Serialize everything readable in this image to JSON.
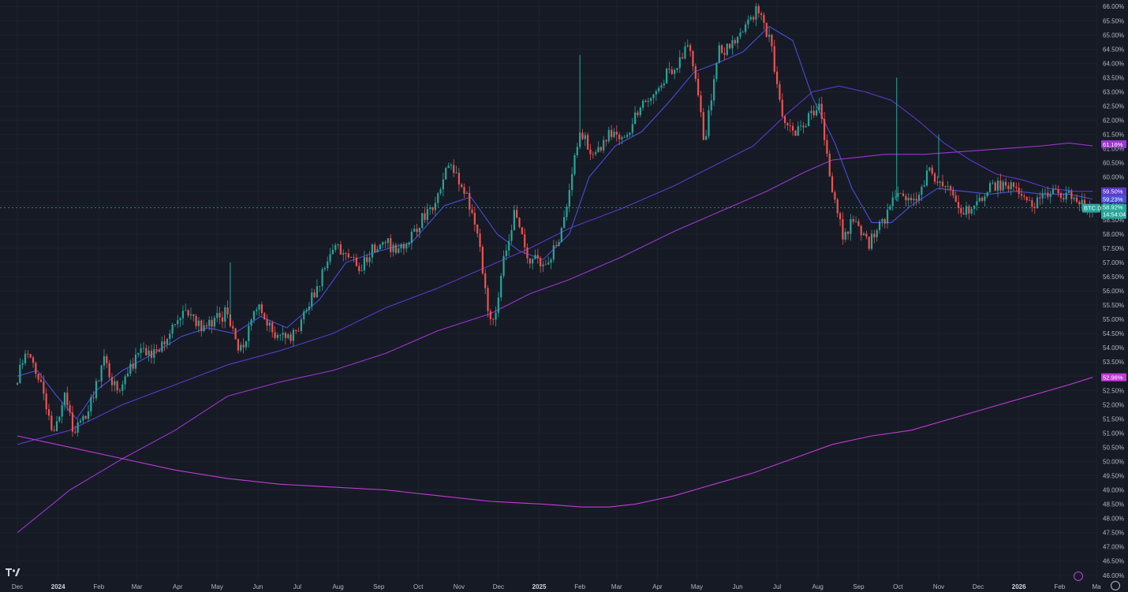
{
  "chart_data": {
    "type": "candlestick",
    "symbol": "BTC.D",
    "last_value": "58.92%",
    "countdown": "14:54:04",
    "ylim": [
      45.8,
      66.2
    ],
    "y_ticks": [
      "46.00%",
      "46.50%",
      "47.00%",
      "47.50%",
      "48.00%",
      "48.50%",
      "49.00%",
      "49.50%",
      "50.00%",
      "50.50%",
      "51.00%",
      "51.50%",
      "52.00%",
      "52.50%",
      "53.00%",
      "53.50%",
      "54.00%",
      "54.50%",
      "55.00%",
      "55.50%",
      "56.00%",
      "56.50%",
      "57.00%",
      "57.50%",
      "58.00%",
      "58.50%",
      "59.00%",
      "59.50%",
      "60.00%",
      "60.50%",
      "61.00%",
      "61.50%",
      "62.00%",
      "62.50%",
      "63.00%",
      "63.50%",
      "64.00%",
      "64.50%",
      "65.00%",
      "65.50%",
      "66.00%"
    ],
    "x_ticks": [
      {
        "label": "Dec",
        "day": 0
      },
      {
        "label": "2024",
        "day": 31,
        "year": true
      },
      {
        "label": "Feb",
        "day": 62
      },
      {
        "label": "Mar",
        "day": 91
      },
      {
        "label": "Apr",
        "day": 122
      },
      {
        "label": "May",
        "day": 152
      },
      {
        "label": "Jun",
        "day": 183
      },
      {
        "label": "Jul",
        "day": 213
      },
      {
        "label": "Aug",
        "day": 244
      },
      {
        "label": "Sep",
        "day": 275
      },
      {
        "label": "Oct",
        "day": 305
      },
      {
        "label": "Nov",
        "day": 336
      },
      {
        "label": "Dec",
        "day": 366
      },
      {
        "label": "2025",
        "day": 397,
        "year": true
      },
      {
        "label": "Feb",
        "day": 428
      },
      {
        "label": "Mar",
        "day": 456
      },
      {
        "label": "Apr",
        "day": 487
      },
      {
        "label": "May",
        "day": 517
      },
      {
        "label": "Jun",
        "day": 548
      },
      {
        "label": "Jul",
        "day": 578
      },
      {
        "label": "Aug",
        "day": 609
      },
      {
        "label": "Sep",
        "day": 640
      },
      {
        "label": "Oct",
        "day": 670
      },
      {
        "label": "Nov",
        "day": 701
      },
      {
        "label": "Dec",
        "day": 731
      },
      {
        "label": "2026",
        "day": 762,
        "year": true
      },
      {
        "label": "Feb",
        "day": 793
      },
      {
        "label": "Ma",
        "day": 821
      }
    ],
    "price_path": [
      [
        0,
        52.7
      ],
      [
        10,
        53.9
      ],
      [
        18,
        53.0
      ],
      [
        28,
        51.0
      ],
      [
        38,
        52.2
      ],
      [
        45,
        51.0
      ],
      [
        55,
        51.6
      ],
      [
        68,
        53.5
      ],
      [
        78,
        52.5
      ],
      [
        95,
        53.9
      ],
      [
        108,
        53.7
      ],
      [
        122,
        55.0
      ],
      [
        135,
        55.2
      ],
      [
        142,
        54.6
      ],
      [
        160,
        55.2
      ],
      [
        172,
        53.9
      ],
      [
        185,
        55.6
      ],
      [
        200,
        54.3
      ],
      [
        215,
        54.5
      ],
      [
        230,
        56.2
      ],
      [
        245,
        57.6
      ],
      [
        262,
        56.8
      ],
      [
        278,
        57.8
      ],
      [
        292,
        57.4
      ],
      [
        305,
        58.2
      ],
      [
        318,
        59.0
      ],
      [
        330,
        60.5
      ],
      [
        342,
        59.6
      ],
      [
        352,
        58.1
      ],
      [
        360,
        55.5
      ],
      [
        364,
        54.9
      ],
      [
        372,
        57.0
      ],
      [
        380,
        58.7
      ],
      [
        390,
        57.2
      ],
      [
        402,
        57.0
      ],
      [
        412,
        57.5
      ],
      [
        420,
        59.0
      ],
      [
        430,
        61.7
      ],
      [
        440,
        60.7
      ],
      [
        452,
        61.5
      ],
      [
        465,
        61.2
      ],
      [
        475,
        62.5
      ],
      [
        485,
        62.7
      ],
      [
        495,
        63.6
      ],
      [
        505,
        64.0
      ],
      [
        512,
        64.8
      ],
      [
        518,
        63.4
      ],
      [
        525,
        61.2
      ],
      [
        535,
        64.4
      ],
      [
        545,
        64.6
      ],
      [
        555,
        65.1
      ],
      [
        565,
        65.9
      ],
      [
        575,
        64.7
      ],
      [
        585,
        62.0
      ],
      [
        595,
        61.6
      ],
      [
        605,
        62.1
      ],
      [
        612,
        62.5
      ],
      [
        620,
        60.0
      ],
      [
        630,
        58.0
      ],
      [
        640,
        58.5
      ],
      [
        650,
        57.7
      ],
      [
        660,
        58.4
      ],
      [
        672,
        59.4
      ],
      [
        685,
        59.3
      ],
      [
        695,
        60.2
      ],
      [
        710,
        59.6
      ],
      [
        722,
        58.7
      ],
      [
        730,
        59.1
      ],
      [
        745,
        59.7
      ],
      [
        760,
        59.6
      ],
      [
        775,
        59.1
      ],
      [
        790,
        59.6
      ],
      [
        800,
        59.4
      ],
      [
        812,
        59.2
      ],
      [
        818,
        58.9
      ]
    ],
    "spike_days": [
      {
        "day": 428,
        "value": 64.3
      },
      {
        "day": 669,
        "value": 63.5
      },
      {
        "day": 701,
        "value": 61.5
      },
      {
        "day": 162,
        "value": 57.0
      }
    ],
    "moving_averages": [
      {
        "color": "#4a4ed6",
        "badge": "59.23%",
        "path": [
          [
            0,
            53.0
          ],
          [
            15,
            53.2
          ],
          [
            30,
            52.3
          ],
          [
            45,
            51.5
          ],
          [
            60,
            52.5
          ],
          [
            80,
            53.2
          ],
          [
            100,
            53.7
          ],
          [
            125,
            54.4
          ],
          [
            145,
            54.7
          ],
          [
            165,
            54.5
          ],
          [
            185,
            55.1
          ],
          [
            205,
            54.7
          ],
          [
            230,
            55.7
          ],
          [
            250,
            57.0
          ],
          [
            275,
            57.4
          ],
          [
            300,
            57.7
          ],
          [
            325,
            59.0
          ],
          [
            345,
            59.3
          ],
          [
            365,
            58.0
          ],
          [
            382,
            57.4
          ],
          [
            400,
            57.1
          ],
          [
            420,
            58.0
          ],
          [
            435,
            60.0
          ],
          [
            455,
            61.1
          ],
          [
            475,
            61.6
          ],
          [
            495,
            62.6
          ],
          [
            515,
            63.7
          ],
          [
            532,
            64.0
          ],
          [
            552,
            64.4
          ],
          [
            572,
            65.3
          ],
          [
            590,
            64.8
          ],
          [
            605,
            62.8
          ],
          [
            622,
            61.2
          ],
          [
            635,
            59.6
          ],
          [
            650,
            58.4
          ],
          [
            665,
            58.4
          ],
          [
            680,
            59.0
          ],
          [
            700,
            59.6
          ],
          [
            720,
            59.5
          ],
          [
            740,
            59.4
          ],
          [
            760,
            59.5
          ],
          [
            780,
            59.4
          ],
          [
            800,
            59.4
          ],
          [
            818,
            59.23
          ]
        ]
      },
      {
        "color": "#5a39c8",
        "badge": "59.50%",
        "path": [
          [
            0,
            50.6
          ],
          [
            40,
            51.1
          ],
          [
            80,
            52.0
          ],
          [
            120,
            52.7
          ],
          [
            160,
            53.4
          ],
          [
            200,
            53.9
          ],
          [
            240,
            54.5
          ],
          [
            280,
            55.4
          ],
          [
            320,
            56.1
          ],
          [
            360,
            56.9
          ],
          [
            390,
            57.5
          ],
          [
            420,
            58.2
          ],
          [
            460,
            58.9
          ],
          [
            500,
            59.7
          ],
          [
            530,
            60.4
          ],
          [
            560,
            61.1
          ],
          [
            585,
            62.2
          ],
          [
            605,
            63.0
          ],
          [
            625,
            63.2
          ],
          [
            645,
            63.0
          ],
          [
            665,
            62.7
          ],
          [
            685,
            62.0
          ],
          [
            705,
            61.2
          ],
          [
            725,
            60.6
          ],
          [
            745,
            60.1
          ],
          [
            765,
            59.9
          ],
          [
            785,
            59.6
          ],
          [
            805,
            59.5
          ],
          [
            818,
            59.5
          ]
        ]
      },
      {
        "color": "#9b36d0",
        "badge": "61.16%",
        "path": [
          [
            0,
            47.5
          ],
          [
            40,
            49.0
          ],
          [
            80,
            50.1
          ],
          [
            120,
            51.1
          ],
          [
            160,
            52.3
          ],
          [
            200,
            52.8
          ],
          [
            240,
            53.2
          ],
          [
            280,
            53.8
          ],
          [
            320,
            54.6
          ],
          [
            360,
            55.2
          ],
          [
            390,
            55.9
          ],
          [
            420,
            56.4
          ],
          [
            460,
            57.2
          ],
          [
            500,
            58.1
          ],
          [
            540,
            58.9
          ],
          [
            570,
            59.5
          ],
          [
            600,
            60.2
          ],
          [
            620,
            60.6
          ],
          [
            640,
            60.7
          ],
          [
            660,
            60.8
          ],
          [
            690,
            60.8
          ],
          [
            720,
            60.9
          ],
          [
            750,
            61.0
          ],
          [
            780,
            61.1
          ],
          [
            800,
            61.2
          ],
          [
            818,
            61.1
          ]
        ]
      },
      {
        "color": "#c23ad6",
        "badge": "52.96%",
        "path": [
          [
            0,
            50.9
          ],
          [
            40,
            50.5
          ],
          [
            80,
            50.1
          ],
          [
            120,
            49.7
          ],
          [
            160,
            49.4
          ],
          [
            200,
            49.2
          ],
          [
            240,
            49.1
          ],
          [
            280,
            49.0
          ],
          [
            320,
            48.8
          ],
          [
            360,
            48.6
          ],
          [
            400,
            48.5
          ],
          [
            430,
            48.4
          ],
          [
            450,
            48.4
          ],
          [
            470,
            48.5
          ],
          [
            500,
            48.8
          ],
          [
            530,
            49.2
          ],
          [
            560,
            49.6
          ],
          [
            590,
            50.1
          ],
          [
            620,
            50.6
          ],
          [
            650,
            50.9
          ],
          [
            680,
            51.1
          ],
          [
            710,
            51.5
          ],
          [
            740,
            51.9
          ],
          [
            770,
            52.3
          ],
          [
            800,
            52.7
          ],
          [
            818,
            52.96
          ]
        ]
      }
    ]
  },
  "icons": {
    "logo": "tradingview-logo",
    "settings": "gear-icon",
    "lightning": "lightning-icon"
  }
}
